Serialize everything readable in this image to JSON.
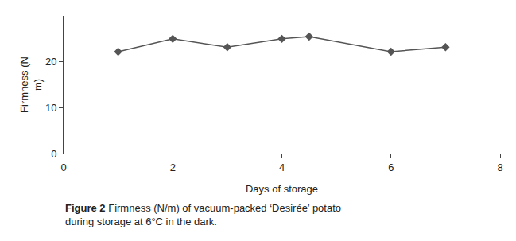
{
  "chart_data": {
    "type": "line",
    "x_label": "Days of storage",
    "y_label": "Firmness (N\nm)",
    "x": [
      1,
      2,
      3,
      4,
      4.5,
      6,
      7
    ],
    "series": [
      {
        "name": "Firmness",
        "color": "#555555",
        "marker": "diamond",
        "line_style": "solid",
        "values": [
          22.2,
          25.0,
          23.2,
          25.0,
          25.5,
          22.2,
          23.2
        ]
      }
    ],
    "xlim": [
      0,
      8
    ],
    "xticks": [
      0,
      2,
      4,
      6,
      8
    ],
    "ylim": [
      0,
      30
    ],
    "yticks": [
      0,
      10,
      20
    ],
    "grid": false,
    "annotations": [
      "Figure 2",
      "Firmness (N/m) of vacuum-packed ‘Desirée’ potato\nduring storage at 6°C in the dark."
    ]
  }
}
